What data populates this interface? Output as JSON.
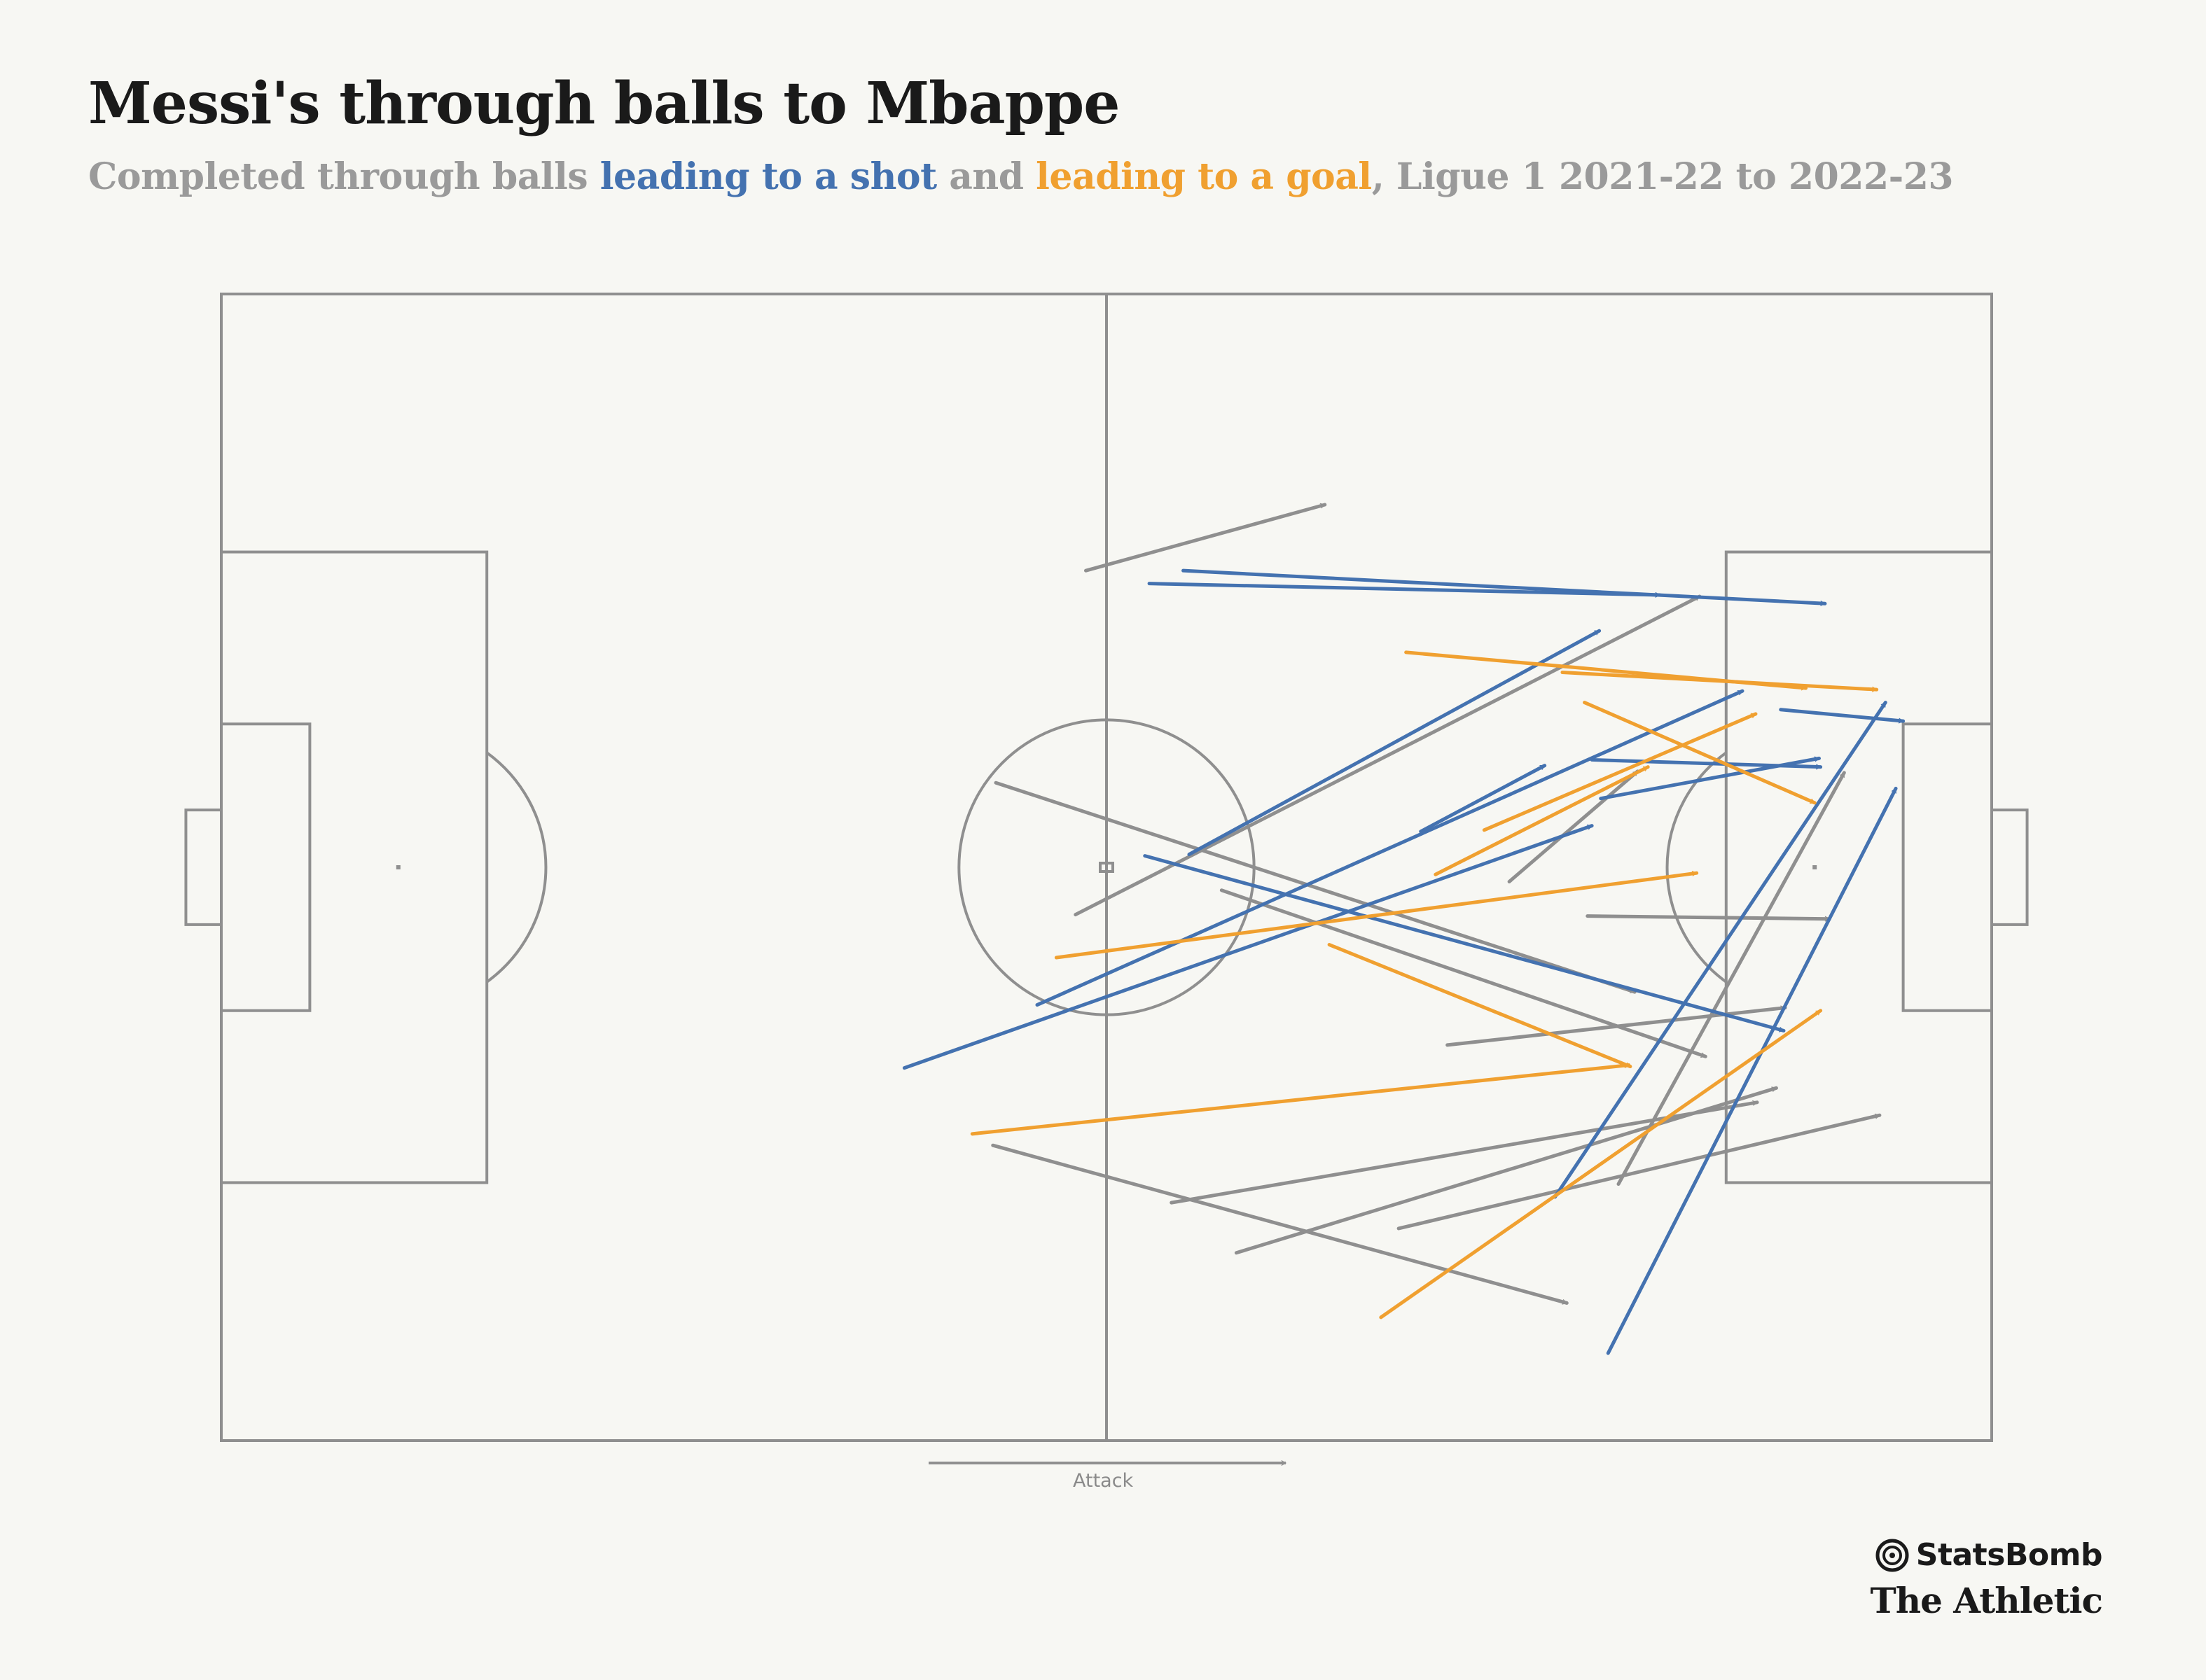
{
  "title": "Messi's through balls to Mbappe",
  "subtitle": {
    "part1": "Completed through balls ",
    "shot": "leading to a shot",
    "part2": " and ",
    "goal": "leading to a goal",
    "part3": ", Ligue 1 2021-22 to 2022-23"
  },
  "attack_label": "Attack",
  "credits": {
    "statsbomb": "StatsBomb",
    "athletic": "The Athletic"
  },
  "colors": {
    "shot": "#4472b0",
    "goal": "#f0a030",
    "other": "#8f8f8f",
    "pitch": "#8f8f8f"
  },
  "chart_data": {
    "type": "pitch-pass-map",
    "direction": "left-to-right",
    "pitch": {
      "length": 120,
      "width": 80
    },
    "passes": [
      {
        "outcome": "other",
        "x1": 58.6,
        "y1": 19.3,
        "x2": 74.8,
        "y2": 14.7
      },
      {
        "outcome": "shot",
        "x1": 62.9,
        "y1": 20.2,
        "x2": 97.5,
        "y2": 21.0
      },
      {
        "outcome": "shot",
        "x1": 65.2,
        "y1": 19.3,
        "x2": 108.7,
        "y2": 21.6
      },
      {
        "outcome": "other",
        "x1": 57.9,
        "y1": 43.3,
        "x2": 100.2,
        "y2": 21.1
      },
      {
        "outcome": "shot",
        "x1": 65.6,
        "y1": 39.1,
        "x2": 93.4,
        "y2": 23.5
      },
      {
        "outcome": "goal",
        "x1": 80.3,
        "y1": 25.0,
        "x2": 107.4,
        "y2": 27.5
      },
      {
        "outcome": "goal",
        "x1": 90.9,
        "y1": 26.4,
        "x2": 112.2,
        "y2": 27.6
      },
      {
        "outcome": "shot",
        "x1": 55.3,
        "y1": 49.6,
        "x2": 103.1,
        "y2": 27.7
      },
      {
        "outcome": "shot",
        "x1": 105.7,
        "y1": 29.0,
        "x2": 114.0,
        "y2": 29.8
      },
      {
        "outcome": "goal",
        "x1": 85.6,
        "y1": 37.4,
        "x2": 104.0,
        "y2": 29.3
      },
      {
        "outcome": "goal",
        "x1": 92.4,
        "y1": 28.5,
        "x2": 108.0,
        "y2": 35.5
      },
      {
        "outcome": "shot",
        "x1": 92.9,
        "y1": 32.5,
        "x2": 108.4,
        "y2": 33.0
      },
      {
        "outcome": "shot",
        "x1": 93.5,
        "y1": 35.2,
        "x2": 108.3,
        "y2": 32.4
      },
      {
        "outcome": "shot",
        "x1": 81.3,
        "y1": 37.5,
        "x2": 89.7,
        "y2": 32.9
      },
      {
        "outcome": "goal",
        "x1": 82.3,
        "y1": 40.5,
        "x2": 96.7,
        "y2": 33.0
      },
      {
        "outcome": "other",
        "x1": 87.3,
        "y1": 41.0,
        "x2": 96.0,
        "y2": 33.3
      },
      {
        "outcome": "shot",
        "x1": 46.3,
        "y1": 54.0,
        "x2": 92.9,
        "y2": 37.1
      },
      {
        "outcome": "other",
        "x1": 94.7,
        "y1": 62.1,
        "x2": 110.0,
        "y2": 33.4
      },
      {
        "outcome": "shot",
        "x1": 94.0,
        "y1": 73.9,
        "x2": 113.5,
        "y2": 34.5
      },
      {
        "outcome": "shot",
        "x1": 90.4,
        "y1": 63.0,
        "x2": 112.8,
        "y2": 28.5
      },
      {
        "outcome": "goal",
        "x1": 56.6,
        "y1": 46.3,
        "x2": 100.0,
        "y2": 40.4
      },
      {
        "outcome": "other",
        "x1": 92.6,
        "y1": 43.4,
        "x2": 109.0,
        "y2": 43.6
      },
      {
        "outcome": "other",
        "x1": 52.5,
        "y1": 34.1,
        "x2": 95.8,
        "y2": 48.7
      },
      {
        "outcome": "shot",
        "x1": 62.6,
        "y1": 39.2,
        "x2": 105.9,
        "y2": 51.4
      },
      {
        "outcome": "other",
        "x1": 67.8,
        "y1": 41.6,
        "x2": 100.6,
        "y2": 53.2
      },
      {
        "outcome": "goal",
        "x1": 75.1,
        "y1": 45.4,
        "x2": 95.5,
        "y2": 53.9
      },
      {
        "outcome": "other",
        "x1": 83.1,
        "y1": 52.4,
        "x2": 106.0,
        "y2": 49.8
      },
      {
        "outcome": "goal",
        "x1": 50.9,
        "y1": 58.6,
        "x2": 95.4,
        "y2": 53.8
      },
      {
        "outcome": "other",
        "x1": 64.4,
        "y1": 63.4,
        "x2": 104.1,
        "y2": 56.4
      },
      {
        "outcome": "other",
        "x1": 68.8,
        "y1": 66.9,
        "x2": 105.4,
        "y2": 55.4
      },
      {
        "outcome": "other",
        "x1": 79.8,
        "y1": 65.2,
        "x2": 112.4,
        "y2": 57.3
      },
      {
        "outcome": "other",
        "x1": 52.3,
        "y1": 59.4,
        "x2": 91.2,
        "y2": 70.4
      },
      {
        "outcome": "goal",
        "x1": 78.6,
        "y1": 71.4,
        "x2": 108.4,
        "y2": 50.0
      }
    ]
  }
}
